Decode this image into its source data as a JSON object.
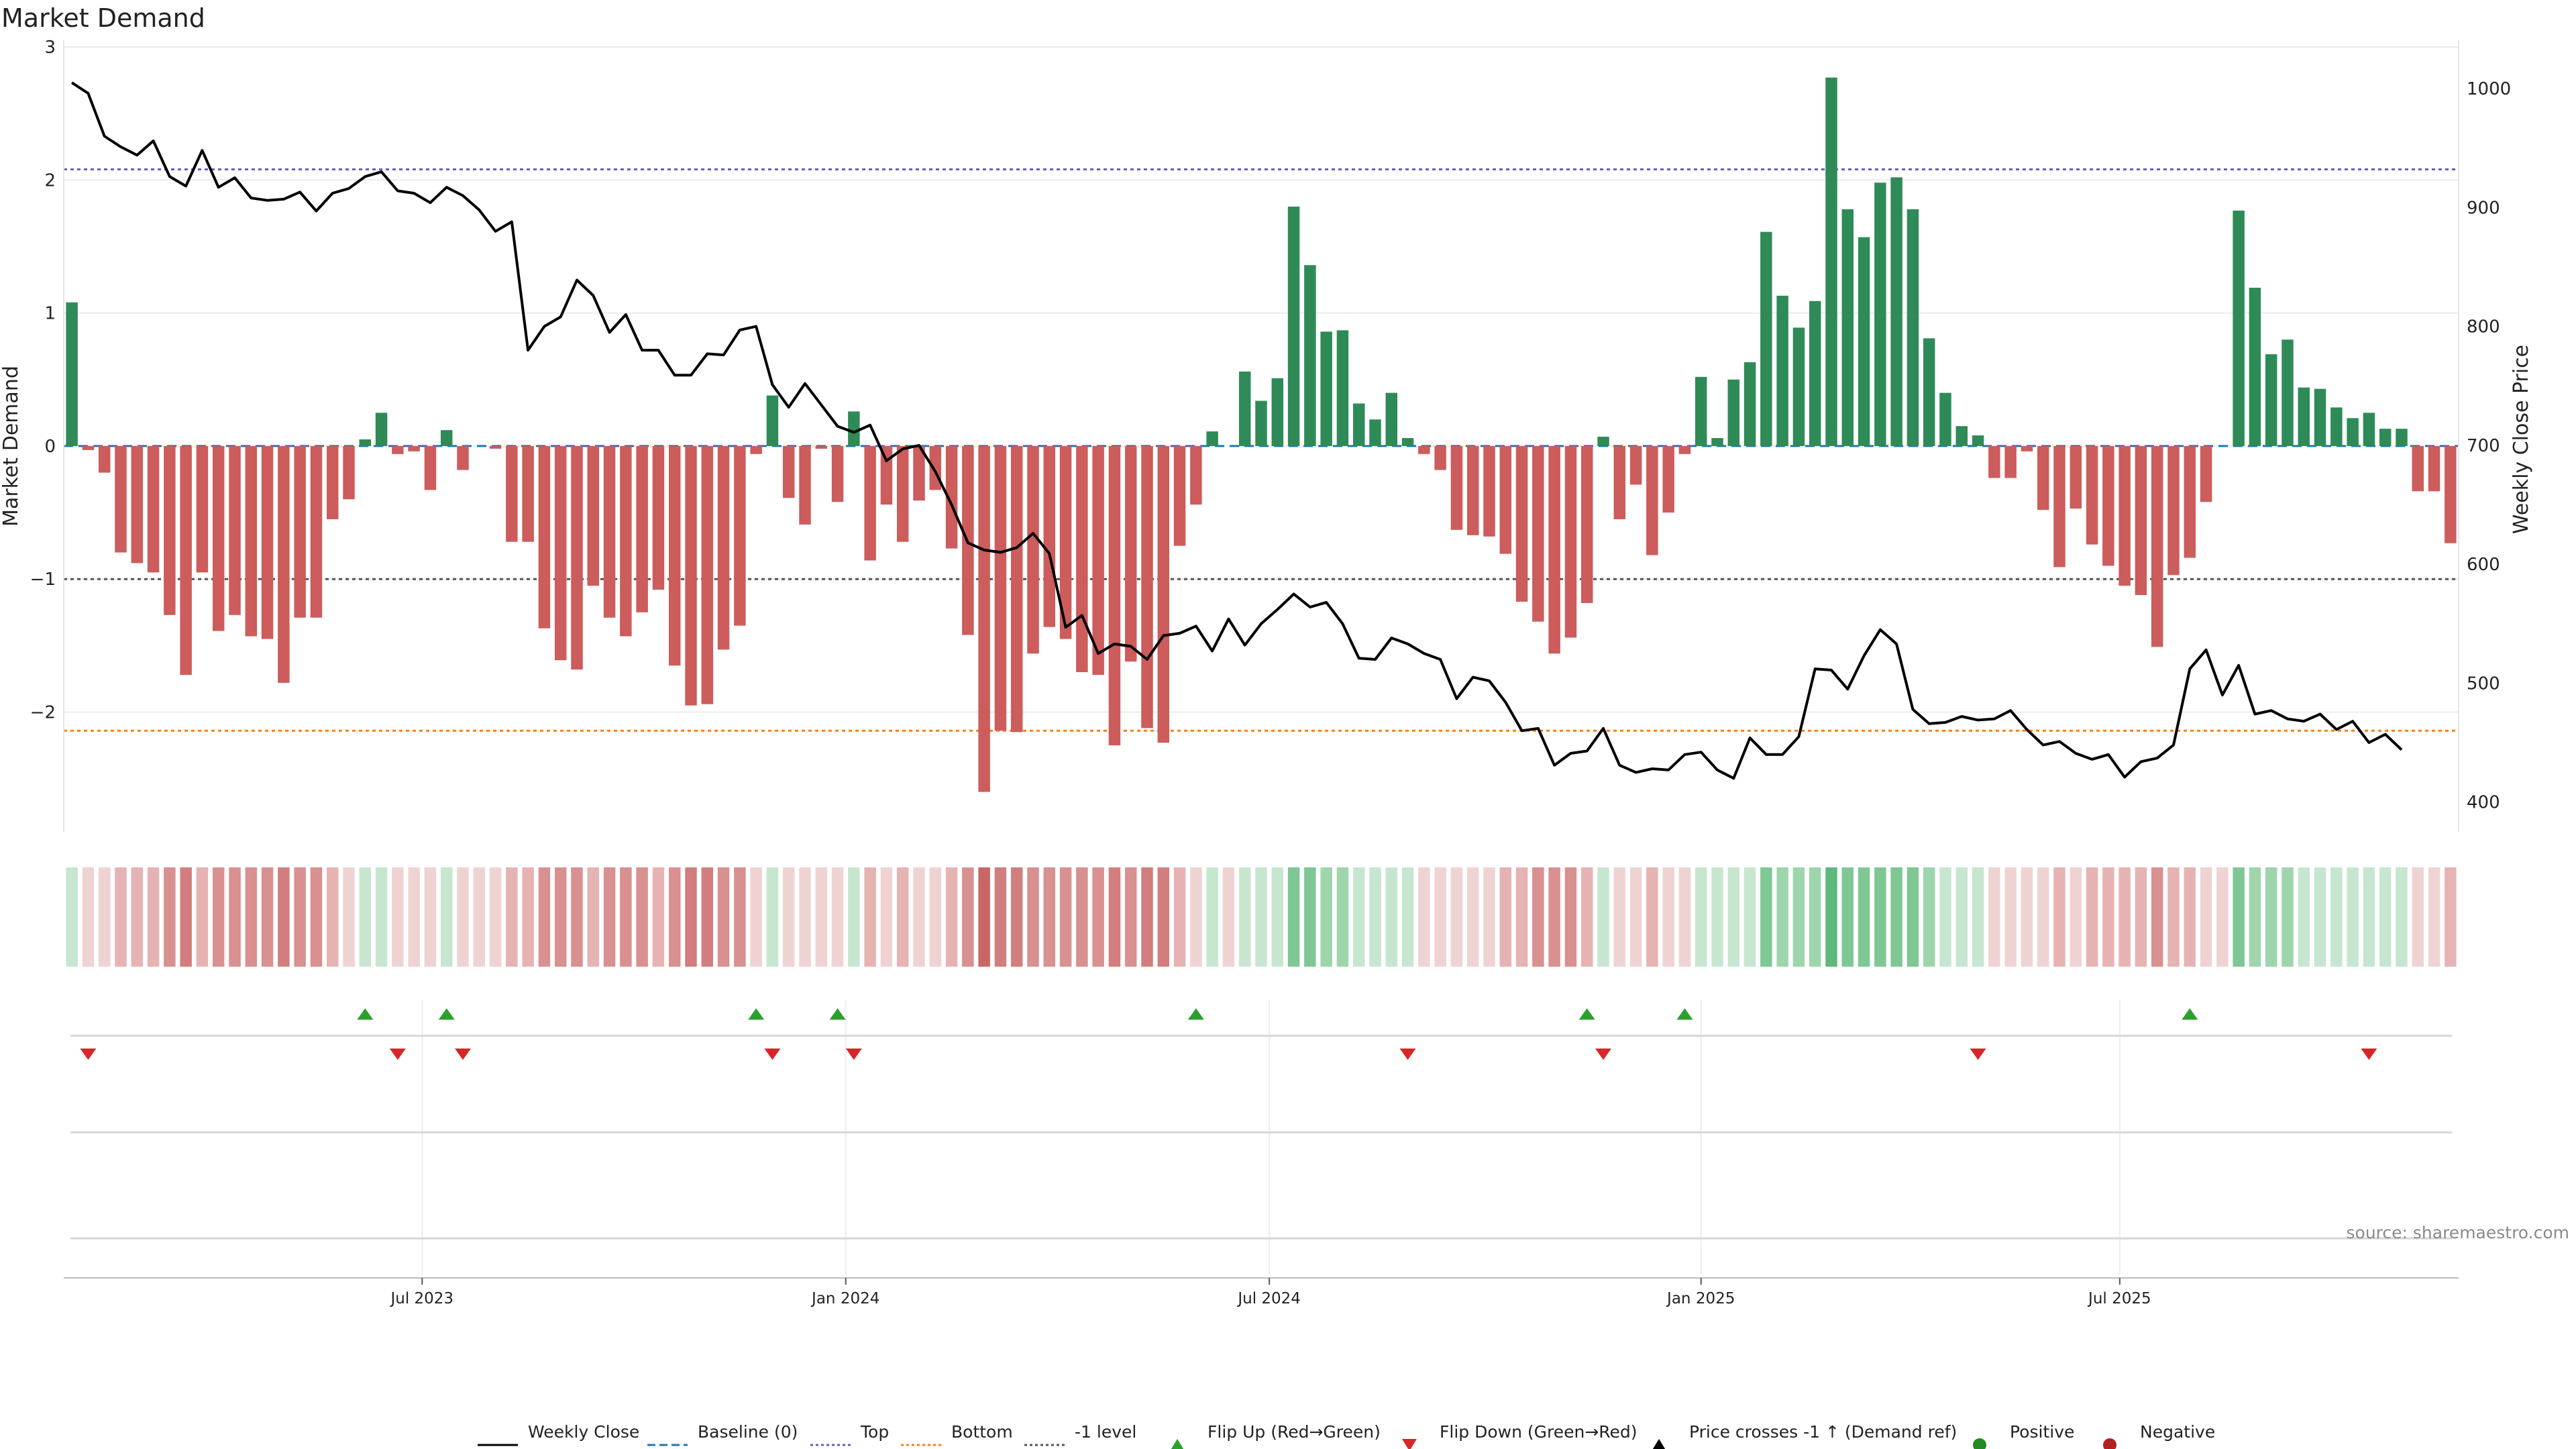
{
  "title": "Market Demand",
  "source": "source: sharemaestro.com",
  "colors": {
    "positive": "#2e8b57",
    "negative": "#cd5c5c",
    "price": "#000000",
    "baseline": "#1f77b4",
    "top": "#6a5acd",
    "bottom": "#ff7f0e",
    "minus_one": "#555555",
    "flip_up": "#2ca02c",
    "flip_down": "#d62728",
    "positive_dot": "#228b22",
    "negative_dot": "#b22222"
  },
  "chart_data": {
    "type": "bar",
    "ylabel": "Market Demand",
    "y2label": "Weekly Close Price",
    "ylim": [
      -2.9,
      3.0
    ],
    "y2lim": [
      375,
      1035
    ],
    "yticks": [
      "3",
      "2",
      "1",
      "0",
      "−1",
      "−2"
    ],
    "ytick_values": [
      3,
      2,
      1,
      0,
      -1,
      -2
    ],
    "y2ticks": [
      "1000",
      "900",
      "800",
      "700",
      "600",
      "500",
      "400"
    ],
    "y2tick_values": [
      1000,
      900,
      800,
      700,
      600,
      500,
      400
    ],
    "xticks": [
      "Jul 2023",
      "Jan 2024",
      "Jul 2024",
      "Jan 2025",
      "Jul 2025"
    ],
    "xtick_positions": [
      22,
      48,
      74,
      100.5,
      126.2
    ],
    "levels": {
      "top": 2.08,
      "bottom": -2.14,
      "minus_one": -1.0,
      "baseline": 0
    },
    "demand": [
      1.08,
      -0.03,
      -0.2,
      -0.8,
      -0.88,
      -0.95,
      -1.27,
      -1.72,
      -0.95,
      -1.39,
      -1.27,
      -1.43,
      -1.45,
      -1.78,
      -1.29,
      -1.29,
      -0.55,
      -0.4,
      0.05,
      0.25,
      -0.06,
      -0.04,
      -0.33,
      0.12,
      -0.18,
      0,
      -0.02,
      -0.72,
      -0.72,
      -1.37,
      -1.61,
      -1.68,
      -1.05,
      -1.29,
      -1.43,
      -1.25,
      -1.08,
      -1.65,
      -1.95,
      -1.94,
      -1.53,
      -1.35,
      -0.06,
      0.38,
      -0.39,
      -0.59,
      -0.02,
      -0.42,
      0.26,
      -0.86,
      -0.44,
      -0.72,
      -0.41,
      -0.33,
      -0.77,
      -1.42,
      -2.6,
      -2.14,
      -2.15,
      -1.56,
      -1.36,
      -1.45,
      -1.7,
      -1.72,
      -2.25,
      -1.62,
      -2.12,
      -2.23,
      -0.75,
      -0.44,
      0.11,
      0,
      0.56,
      0.34,
      0.51,
      1.8,
      1.36,
      0.86,
      0.87,
      0.32,
      0.2,
      0.4,
      0.06,
      -0.06,
      -0.18,
      -0.63,
      -0.67,
      -0.68,
      -0.81,
      -1.17,
      -1.32,
      -1.56,
      -1.44,
      -1.18,
      0.07,
      -0.55,
      -0.29,
      -0.82,
      -0.5,
      -0.06,
      0.52,
      0.06,
      0.5,
      0.63,
      1.61,
      1.13,
      0.89,
      1.09,
      2.77,
      1.78,
      1.57,
      1.98,
      2.02,
      1.78,
      0.81,
      0.4,
      0.15,
      0.08,
      -0.24,
      -0.24,
      -0.04,
      -0.48,
      -0.91,
      -0.47,
      -0.74,
      -0.9,
      -1.05,
      -1.12,
      -1.51,
      -0.97,
      -0.84,
      -0.42,
      0,
      1.77,
      1.19,
      0.69,
      0.8,
      0.44,
      0.43,
      0.29,
      0.21,
      0.25,
      0.13,
      0.13,
      -0.34,
      -0.34,
      -0.73
    ],
    "price": [
      1005,
      996,
      960,
      951,
      944,
      956,
      926,
      918,
      948,
      917,
      925,
      908,
      906,
      907,
      913,
      897,
      912,
      916,
      926,
      930,
      914,
      912,
      904,
      917,
      910,
      898,
      880,
      888,
      780,
      800,
      808,
      839,
      826,
      795,
      810,
      780,
      780,
      759,
      759,
      777,
      776,
      797,
      800,
      751,
      732,
      752,
      734,
      716,
      711,
      717,
      687,
      697,
      700,
      678,
      650,
      618,
      612,
      610,
      614,
      626,
      609,
      547,
      557,
      525,
      533,
      531,
      520,
      540,
      542,
      548,
      527,
      554,
      532,
      550,
      562,
      575,
      564,
      568,
      550,
      521,
      520,
      538,
      533,
      525,
      520,
      487,
      505,
      502,
      484,
      460,
      462,
      431,
      441,
      443,
      462,
      431,
      425,
      428,
      427,
      440,
      442,
      427,
      420,
      454,
      440,
      440,
      455,
      512,
      511,
      495,
      523,
      545,
      533,
      478,
      466,
      467,
      472,
      469,
      470,
      477,
      461,
      448,
      451,
      441,
      436,
      440,
      421,
      434,
      437,
      448,
      512,
      528,
      490,
      515,
      474,
      477,
      470,
      468,
      474,
      461,
      468,
      450,
      457,
      444
    ],
    "flip_up_idx": [
      18,
      23,
      42,
      47,
      69,
      93,
      99,
      130
    ],
    "flip_down_idx": [
      1,
      20,
      24,
      43,
      48,
      82,
      94,
      117,
      141
    ],
    "strip_shades": [
      1,
      1,
      1,
      2,
      2,
      2,
      3,
      4,
      2,
      3,
      3,
      3,
      3,
      4,
      3,
      3,
      2,
      1,
      1,
      1,
      1,
      1,
      1,
      1,
      1,
      1,
      1,
      2,
      2,
      3,
      3,
      3,
      2,
      3,
      3,
      3,
      2,
      3,
      4,
      4,
      3,
      3,
      1,
      1,
      1,
      1,
      1,
      1,
      1,
      2,
      1,
      2,
      1,
      1,
      2,
      3,
      5,
      4,
      4,
      3,
      3,
      3,
      3,
      3,
      4,
      3,
      4,
      4,
      2,
      1,
      1,
      1,
      1,
      1,
      1,
      3,
      3,
      2,
      2,
      1,
      1,
      1,
      1,
      1,
      1,
      1,
      1,
      1,
      2,
      2,
      3,
      3,
      3,
      2,
      1,
      1,
      1,
      2,
      1,
      1,
      1,
      1,
      1,
      1,
      3,
      2,
      2,
      2,
      4,
      3,
      3,
      3,
      3,
      3,
      2,
      1,
      1,
      1,
      1,
      1,
      1,
      1,
      2,
      1,
      2,
      2,
      2,
      2,
      3,
      2,
      2,
      1,
      1,
      3,
      2,
      2,
      2,
      1,
      1,
      1,
      1,
      1,
      1,
      1,
      1,
      1,
      2
    ]
  },
  "legend": [
    {
      "label": "Weekly Close",
      "icon": "line-solid"
    },
    {
      "label": "Baseline (0)",
      "icon": "line-dashed"
    },
    {
      "label": "Top",
      "icon": "line-dotted"
    },
    {
      "label": "Bottom",
      "icon": "line-dotted"
    },
    {
      "label": "-1 level",
      "icon": "line-dotted"
    },
    {
      "label": "Flip Up (Red→Green)",
      "icon": "triangle-up"
    },
    {
      "label": "Flip Down (Green→Red)",
      "icon": "triangle-down"
    },
    {
      "label": "Price crosses -1 ↑ (Demand ref)",
      "icon": "triangle-up"
    },
    {
      "label": "Positive",
      "icon": "circle"
    },
    {
      "label": "Negative",
      "icon": "circle"
    }
  ]
}
